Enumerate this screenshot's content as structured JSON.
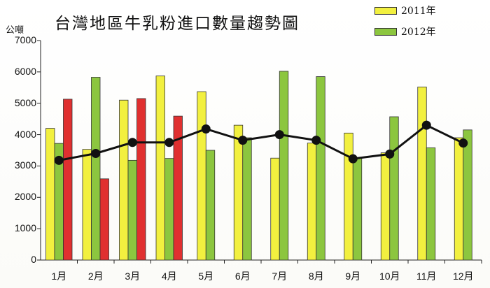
{
  "chart_data": {
    "type": "bar",
    "title": "台灣地區牛乳粉進口數量趨勢圖",
    "ylabel": "公噸",
    "xlabel": "",
    "ylim": [
      0,
      7000
    ],
    "yticks": [
      0,
      1000,
      2000,
      3000,
      4000,
      5000,
      6000,
      7000
    ],
    "grid": false,
    "legend_position": "top-right",
    "categories": [
      "1月",
      "2月",
      "3月",
      "4月",
      "5月",
      "6月",
      "7月",
      "8月",
      "9月",
      "10月",
      "11月",
      "12月"
    ],
    "series": [
      {
        "name": "2011年",
        "type": "bar",
        "color": "#f2f03f",
        "values": [
          4200,
          3530,
          5100,
          5870,
          5370,
          4300,
          3250,
          3730,
          4050,
          3420,
          5520,
          3900
        ]
      },
      {
        "name": "2012年",
        "type": "bar",
        "color": "#8cc63f",
        "values": [
          3720,
          5830,
          3180,
          3240,
          3500,
          3900,
          6020,
          5850,
          3250,
          4570,
          3580,
          4150
        ]
      },
      {
        "type": "bar",
        "color": "#e03030",
        "values": [
          5130,
          2590,
          5150,
          4590,
          null,
          null,
          null,
          null,
          null,
          null,
          null,
          null
        ]
      },
      {
        "type": "line",
        "color": "#111111",
        "values": [
          3180,
          3400,
          3750,
          3750,
          4180,
          3820,
          4000,
          3820,
          3230,
          3380,
          4300,
          3730
        ]
      }
    ]
  }
}
